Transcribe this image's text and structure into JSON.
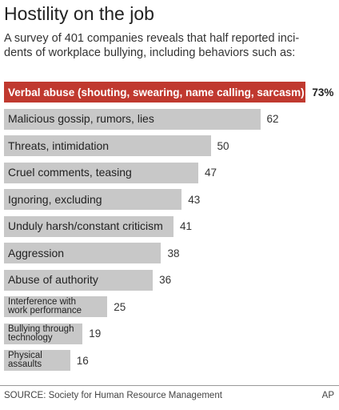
{
  "chart_data": {
    "type": "bar",
    "orientation": "horizontal",
    "title": "Hostility on the job",
    "subtitle": [
      "A survey of 401 companies reveals that half reported inci-",
      "dents of workplace bullying, including behaviors such as:"
    ],
    "categories": [
      "Verbal abuse (shouting, swearing, name calling, sarcasm)",
      "Malicious gossip, rumors, lies",
      "Threats, intimidation",
      "Cruel comments, teasing",
      "Ignoring, excluding",
      "Unduly harsh/constant criticism",
      "Aggression",
      "Abuse of authority",
      "Interference with\nwork performance",
      "Bullying through\ntechnology",
      "Physical\nassaults"
    ],
    "values": [
      73,
      62,
      50,
      47,
      43,
      41,
      38,
      36,
      25,
      19,
      16
    ],
    "value_labels": [
      "73%",
      "62",
      "50",
      "47",
      "43",
      "41",
      "38",
      "36",
      "25",
      "19",
      "16"
    ],
    "colors": [
      "#c0392f",
      "#c8c8c8",
      "#c8c8c8",
      "#c8c8c8",
      "#c8c8c8",
      "#c8c8c8",
      "#c8c8c8",
      "#c8c8c8",
      "#c8c8c8",
      "#c8c8c8",
      "#c8c8c8"
    ],
    "source": "SOURCE: Society for Human Resource Management",
    "credit": "AP"
  }
}
